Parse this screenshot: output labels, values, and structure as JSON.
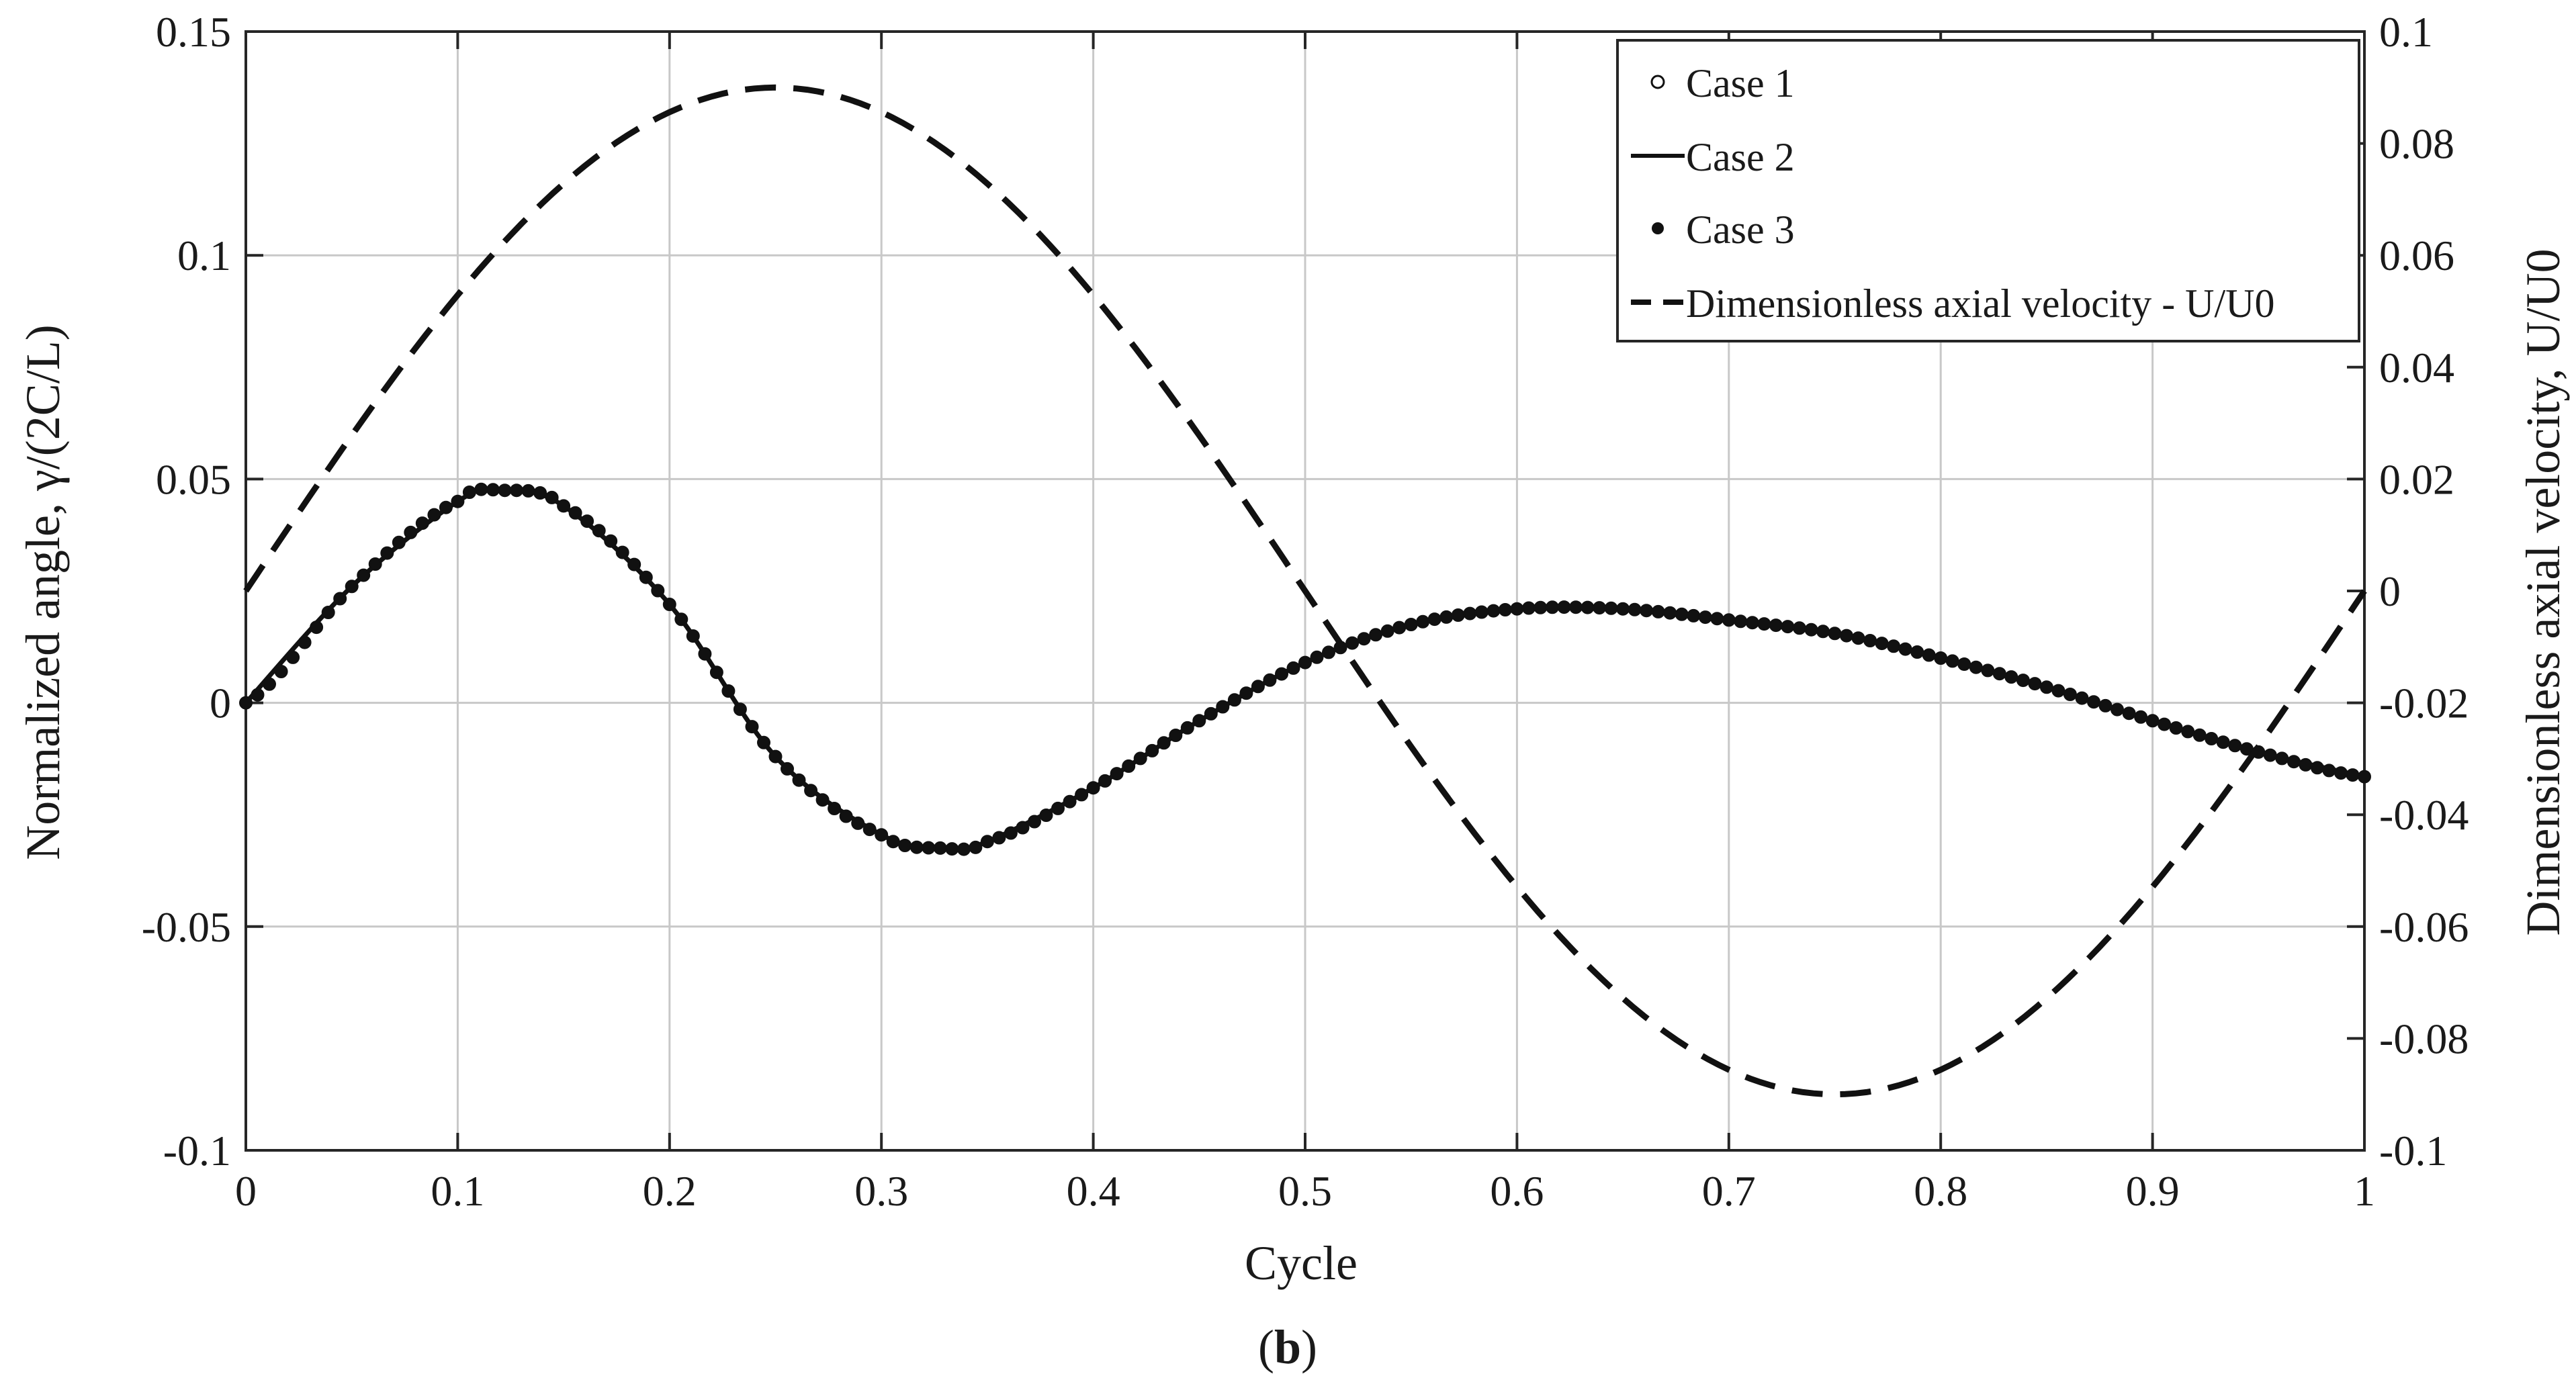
{
  "chart_data": {
    "type": "line",
    "xlabel": "Cycle",
    "ylabel_left": "Normalized angle, γ/(2C/L)",
    "ylabel_right": "Dimensionless axial velocity, U/U0",
    "caption_open": "(",
    "caption_letter": "b",
    "caption_close": ")",
    "xlim": [
      0,
      1
    ],
    "ylim_left": [
      -0.1,
      0.15
    ],
    "ylim_right": [
      -0.1,
      0.1
    ],
    "x_ticks": [
      0,
      0.1,
      0.2,
      0.3,
      0.4,
      0.5,
      0.6,
      0.7,
      0.8,
      0.9,
      1
    ],
    "x_tick_labels": [
      "0",
      "0.1",
      "0.2",
      "0.3",
      "0.4",
      "0.5",
      "0.6",
      "0.7",
      "0.8",
      "0.9",
      "1"
    ],
    "y_left_ticks": [
      -0.1,
      -0.05,
      0,
      0.05,
      0.1,
      0.15
    ],
    "y_left_tick_labels": [
      "-0.1",
      "-0.05",
      "0",
      "0.05",
      "0.1",
      "0.15"
    ],
    "y_right_ticks": [
      -0.1,
      -0.08,
      -0.06,
      -0.04,
      -0.02,
      0,
      0.02,
      0.04,
      0.06,
      0.08,
      0.1
    ],
    "y_right_tick_labels": [
      "-0.1",
      "-0.08",
      "-0.06",
      "-0.04",
      "-0.02",
      "0",
      "0.02",
      "0.04",
      "0.06",
      "0.08",
      "0.1"
    ],
    "grid": true,
    "legend_position": "top-right",
    "series": [
      {
        "name": "Case 1",
        "style": "open-circle",
        "axis": "left",
        "x": [
          0,
          0.05,
          0.1,
          0.12,
          0.15,
          0.2,
          0.25,
          0.3,
          0.33,
          0.35,
          0.4,
          0.45,
          0.5,
          0.55,
          0.6,
          0.65,
          0.7,
          0.75,
          0.8,
          0.85,
          0.9,
          0.95,
          1.0
        ],
        "y": [
          0,
          0.026,
          0.045,
          0.0475,
          0.044,
          0.022,
          -0.012,
          -0.0295,
          -0.0325,
          -0.031,
          -0.019,
          -0.004,
          0.009,
          0.0175,
          0.021,
          0.021,
          0.0185,
          0.0155,
          0.01,
          0.0035,
          -0.004,
          -0.011,
          -0.0165
        ]
      },
      {
        "name": "Case 2",
        "style": "solid-line",
        "axis": "left",
        "x": [
          0,
          0.05,
          0.1,
          0.12,
          0.15,
          0.2,
          0.25,
          0.3,
          0.33,
          0.35,
          0.4,
          0.45,
          0.5,
          0.55,
          0.6,
          0.65,
          0.7,
          0.75,
          0.8,
          0.85,
          0.9,
          0.95,
          1.0
        ],
        "y": [
          0,
          0.026,
          0.045,
          0.0475,
          0.044,
          0.022,
          -0.012,
          -0.0295,
          -0.0325,
          -0.031,
          -0.019,
          -0.004,
          0.009,
          0.0175,
          0.021,
          0.021,
          0.0185,
          0.0155,
          0.01,
          0.0035,
          -0.004,
          -0.011,
          -0.0165
        ]
      },
      {
        "name": "Case 3",
        "style": "filled-dot",
        "axis": "left",
        "x": [
          0,
          0.05,
          0.1,
          0.12,
          0.15,
          0.2,
          0.25,
          0.3,
          0.33,
          0.35,
          0.4,
          0.45,
          0.5,
          0.55,
          0.6,
          0.65,
          0.7,
          0.75,
          0.8,
          0.85,
          0.9,
          0.95,
          1.0
        ],
        "y": [
          0,
          0.026,
          0.045,
          0.0475,
          0.044,
          0.022,
          -0.012,
          -0.0295,
          -0.0325,
          -0.031,
          -0.019,
          -0.004,
          0.009,
          0.0175,
          0.021,
          0.021,
          0.0185,
          0.0155,
          0.01,
          0.0035,
          -0.004,
          -0.011,
          -0.0165
        ]
      },
      {
        "name": "Dimensionless axial velocity - U/U0",
        "style": "dashed-line",
        "axis": "right",
        "function": "0.09*sin(2*pi*x)",
        "x": [
          0,
          0.05,
          0.1,
          0.15,
          0.2,
          0.25,
          0.3,
          0.35,
          0.4,
          0.45,
          0.5,
          0.55,
          0.6,
          0.65,
          0.7,
          0.75,
          0.8,
          0.85,
          0.9,
          0.95,
          1.0
        ],
        "y": [
          0,
          0.0278,
          0.0529,
          0.0728,
          0.0856,
          0.09,
          0.0856,
          0.0728,
          0.0529,
          0.0278,
          0,
          -0.0278,
          -0.0529,
          -0.0728,
          -0.0856,
          -0.09,
          -0.0856,
          -0.0728,
          -0.0529,
          -0.0278,
          0
        ]
      }
    ]
  }
}
